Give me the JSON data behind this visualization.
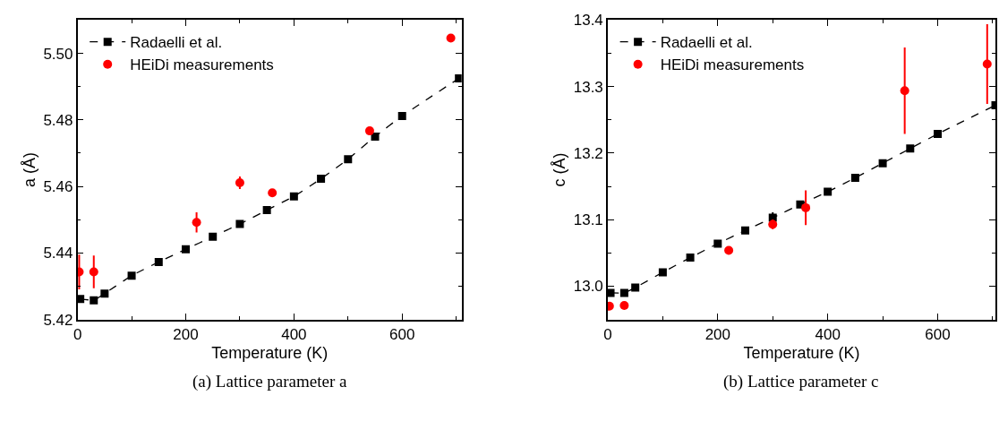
{
  "chart_data": [
    {
      "type": "scatter",
      "xlabel": "Temperature (K)",
      "ylabel": "a (Å)",
      "annotations": [
        "(a) Lattice parameter a"
      ],
      "xlim": [
        0,
        710
      ],
      "ylim": [
        5.42,
        5.51
      ],
      "xticks": [
        0,
        200,
        400,
        600
      ],
      "yticks": [
        5.42,
        5.44,
        5.46,
        5.48,
        {
          "value": 5.5,
          "label": "5.50"
        }
      ],
      "legend": "top left",
      "series": [
        {
          "name": "Radaelli et al.",
          "type": "line",
          "color": "#000000",
          "marker": "square",
          "line_style": "dashed",
          "x": [
            5,
            30,
            50,
            100,
            150,
            200,
            250,
            300,
            350,
            400,
            450,
            500,
            550,
            600,
            705
          ],
          "values": [
            5.4262,
            5.4258,
            5.4278,
            5.4332,
            5.4373,
            5.4411,
            5.4449,
            5.4487,
            5.4529,
            5.457,
            5.4623,
            5.4682,
            5.475,
            5.4812,
            5.4925
          ]
        },
        {
          "name": "HEiDi measurements",
          "color": "#ff0000",
          "marker": "circle",
          "x": [
            3,
            30,
            220,
            300,
            360,
            540,
            690
          ],
          "values": [
            5.4343,
            5.4343,
            5.4492,
            5.4611,
            5.4581,
            5.4767,
            5.5046
          ],
          "errors": [
            0.0052,
            0.0049,
            0.003,
            0.0019,
            0.0007,
            null,
            null
          ]
        }
      ]
    },
    {
      "type": "scatter",
      "xlabel": "Temperature (K)",
      "ylabel": "c (Å)",
      "annotations": [
        "(b) Lattice parameter c"
      ],
      "xlim": [
        0,
        705
      ],
      "ylim": [
        12.95,
        13.4
      ],
      "xticks": [
        0,
        200,
        400,
        600
      ],
      "yticks": [
        {
          "value": 13.0,
          "label": "13.0"
        },
        13.1,
        13.2,
        13.3,
        13.4
      ],
      "legend": "top left",
      "series": [
        {
          "name": "Radaelli et al.",
          "type": "line",
          "color": "#000000",
          "marker": "square",
          "line_style": "dashed",
          "x": [
            5,
            30,
            50,
            100,
            150,
            200,
            250,
            300,
            350,
            400,
            450,
            500,
            550,
            600,
            705
          ],
          "values": [
            12.99,
            12.99,
            12.998,
            13.021,
            13.043,
            13.064,
            13.084,
            13.103,
            13.123,
            13.142,
            13.163,
            13.185,
            13.207,
            13.229,
            13.272
          ],
          "errors": [
            null,
            null,
            null,
            null,
            null,
            null,
            null,
            0.008,
            null,
            null,
            null,
            null,
            null,
            null,
            null
          ]
        },
        {
          "name": "HEiDi measurements",
          "color": "#ff0000",
          "marker": "circle",
          "x": [
            3,
            30,
            220,
            300,
            360,
            540,
            690
          ],
          "values": [
            12.97,
            12.971,
            13.054,
            13.093,
            13.118,
            13.294,
            13.334
          ],
          "errors": [
            null,
            null,
            null,
            0.0072,
            0.026,
            0.065,
            0.06
          ]
        }
      ]
    }
  ]
}
